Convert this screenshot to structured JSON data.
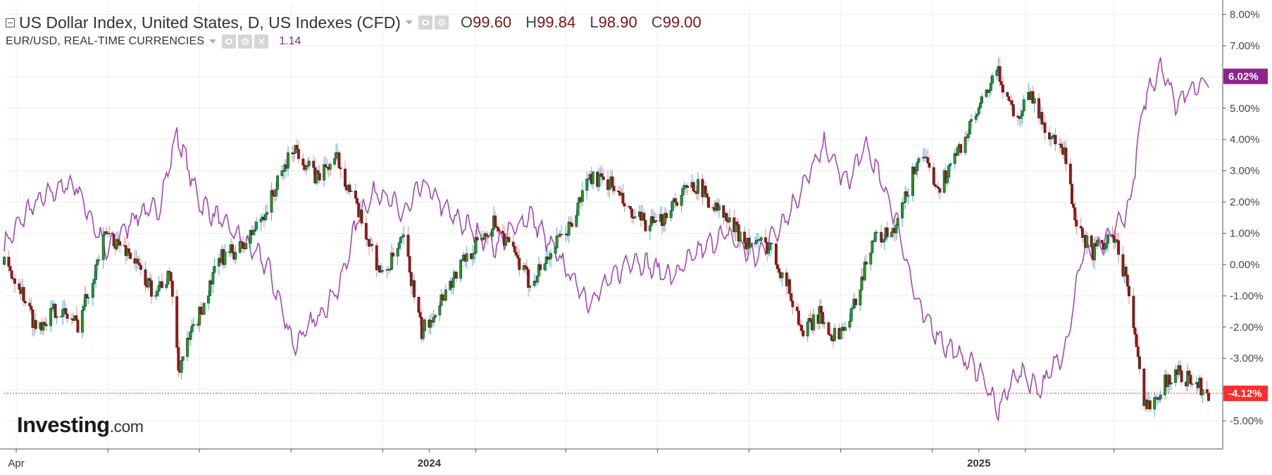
{
  "legend": {
    "title": "US Dollar Index, United States, D, US Indexes (CFD)",
    "ohlc": [
      {
        "key": "O",
        "value": "99.60"
      },
      {
        "key": "H",
        "value": "99.84"
      },
      {
        "key": "L",
        "value": "98.90"
      },
      {
        "key": "C",
        "value": "99.00"
      }
    ],
    "compare_title": "EUR/USD, REAL-TIME CURRENCIES",
    "compare_value": "1.14"
  },
  "logo": {
    "brand": "Investing",
    "suffix": ".com"
  },
  "colors": {
    "up": "#1d9a2a",
    "down": "#a11313",
    "compare_line": "#a14ab0",
    "last_price_line": "#ff2d2d",
    "compare_badge": "#8e238e",
    "grid": "#eeeeee"
  },
  "chart_data": {
    "type": "candlestick",
    "y_axis": {
      "min": -5.9,
      "max": 8.35,
      "ticks": [
        8,
        7,
        6,
        5,
        4,
        3,
        2,
        1,
        0,
        -1,
        -2,
        -3,
        -4,
        -5
      ],
      "tick_labels": [
        "8.00%",
        "7.00%",
        "6.00%",
        "5.00%",
        "4.00%",
        "3.00%",
        "2.00%",
        "1.00%",
        "0.00%",
        "-1.00%",
        "-2.00%",
        "-3.00%",
        "-4.00%",
        "-5.00%"
      ],
      "position": "right"
    },
    "x_axis": {
      "start": "2023-03-24",
      "end": "2025-06-03",
      "labels": [
        {
          "date": "2023-04-01",
          "text": "Apr",
          "bold": false
        },
        {
          "date": "2024-01-01",
          "text": "2024",
          "bold": true
        },
        {
          "date": "2025-01-01",
          "text": "2025",
          "bold": true
        }
      ],
      "minor_ticks": [
        "2023-04-01",
        "2023-06-01",
        "2023-08-01",
        "2023-10-01",
        "2023-12-01",
        "2024-02-01",
        "2024-04-01",
        "2024-06-01",
        "2024-08-01",
        "2024-10-01",
        "2024-12-01",
        "2025-02-01",
        "2025-04-01"
      ]
    },
    "grid": true,
    "series": [
      {
        "name": "US Dollar Index",
        "kind": "candlestick",
        "last_value": -4.12,
        "last_label": "-4.12%",
        "anchors": [
          [
            "2023-03-24",
            0.0
          ],
          [
            "2023-04-03",
            -0.6
          ],
          [
            "2023-04-14",
            -2.0
          ],
          [
            "2023-04-28",
            -1.4
          ],
          [
            "2023-05-12",
            -1.9
          ],
          [
            "2023-05-31",
            1.0
          ],
          [
            "2023-06-15",
            0.4
          ],
          [
            "2023-06-30",
            -0.8
          ],
          [
            "2023-07-13",
            -0.4
          ],
          [
            "2023-07-18",
            -3.3
          ],
          [
            "2023-08-01",
            -1.6
          ],
          [
            "2023-08-15",
            0.2
          ],
          [
            "2023-08-31",
            0.6
          ],
          [
            "2023-09-15",
            1.8
          ],
          [
            "2023-10-03",
            3.8
          ],
          [
            "2023-10-17",
            2.8
          ],
          [
            "2023-11-01",
            3.4
          ],
          [
            "2023-11-15",
            1.6
          ],
          [
            "2023-12-01",
            -0.4
          ],
          [
            "2023-12-15",
            0.8
          ],
          [
            "2023-12-27",
            -2.2
          ],
          [
            "2024-01-10",
            -1.0
          ],
          [
            "2024-01-25",
            0.2
          ],
          [
            "2024-02-14",
            1.4
          ],
          [
            "2024-03-08",
            -0.6
          ],
          [
            "2024-03-25",
            0.6
          ],
          [
            "2024-04-05",
            1.3
          ],
          [
            "2024-04-16",
            2.8
          ],
          [
            "2024-05-01",
            2.6
          ],
          [
            "2024-05-15",
            1.5
          ],
          [
            "2024-06-01",
            1.2
          ],
          [
            "2024-06-11",
            2.0
          ],
          [
            "2024-06-26",
            2.6
          ],
          [
            "2024-07-12",
            1.7
          ],
          [
            "2024-07-31",
            0.7
          ],
          [
            "2024-08-15",
            0.6
          ],
          [
            "2024-08-27",
            -0.7
          ],
          [
            "2024-09-06",
            -2.2
          ],
          [
            "2024-09-17",
            -1.6
          ],
          [
            "2024-09-27",
            -2.3
          ],
          [
            "2024-10-07",
            -1.8
          ],
          [
            "2024-10-22",
            0.8
          ],
          [
            "2024-11-06",
            1.0
          ],
          [
            "2024-11-22",
            3.5
          ],
          [
            "2024-12-06",
            2.5
          ],
          [
            "2024-12-20",
            3.8
          ],
          [
            "2025-01-02",
            5.0
          ],
          [
            "2025-01-13",
            6.2
          ],
          [
            "2025-01-27",
            4.6
          ],
          [
            "2025-02-03",
            5.6
          ],
          [
            "2025-02-14",
            4.4
          ],
          [
            "2025-02-28",
            3.4
          ],
          [
            "2025-03-06",
            1.2
          ],
          [
            "2025-03-18",
            0.4
          ],
          [
            "2025-04-01",
            0.9
          ],
          [
            "2025-04-10",
            -0.6
          ],
          [
            "2025-04-21",
            -4.6
          ],
          [
            "2025-05-12",
            -3.4
          ],
          [
            "2025-05-28",
            -3.9
          ],
          [
            "2025-06-03",
            -4.12
          ]
        ]
      },
      {
        "name": "EUR/USD",
        "kind": "line",
        "last_value": 6.02,
        "last_label": "6.02%",
        "anchors": [
          [
            "2023-03-24",
            0.6
          ],
          [
            "2023-04-10",
            1.8
          ],
          [
            "2023-04-27",
            2.4
          ],
          [
            "2023-05-10",
            2.6
          ],
          [
            "2023-05-31",
            0.4
          ],
          [
            "2023-06-20",
            1.6
          ],
          [
            "2023-07-05",
            1.8
          ],
          [
            "2023-07-17",
            4.2
          ],
          [
            "2023-08-01",
            2.0
          ],
          [
            "2023-08-20",
            1.2
          ],
          [
            "2023-09-15",
            0.0
          ],
          [
            "2023-10-03",
            -2.6
          ],
          [
            "2023-10-20",
            -1.6
          ],
          [
            "2023-11-03",
            -0.6
          ],
          [
            "2023-11-15",
            1.6
          ],
          [
            "2023-11-28",
            2.4
          ],
          [
            "2023-12-15",
            1.6
          ],
          [
            "2023-12-28",
            2.6
          ],
          [
            "2024-01-15",
            1.6
          ],
          [
            "2024-02-14",
            0.6
          ],
          [
            "2024-03-08",
            1.6
          ],
          [
            "2024-04-16",
            -1.2
          ],
          [
            "2024-05-15",
            0.2
          ],
          [
            "2024-06-11",
            -0.4
          ],
          [
            "2024-06-28",
            0.4
          ],
          [
            "2024-07-17",
            1.0
          ],
          [
            "2024-08-05",
            0.2
          ],
          [
            "2024-08-27",
            1.6
          ],
          [
            "2024-09-20",
            3.8
          ],
          [
            "2024-10-05",
            2.6
          ],
          [
            "2024-10-18",
            3.8
          ],
          [
            "2024-11-06",
            1.6
          ],
          [
            "2024-11-22",
            -1.4
          ],
          [
            "2024-12-10",
            -2.6
          ],
          [
            "2025-01-02",
            -3.4
          ],
          [
            "2025-01-13",
            -4.7
          ],
          [
            "2025-01-27",
            -3.4
          ],
          [
            "2025-02-11",
            -4.0
          ],
          [
            "2025-02-28",
            -2.6
          ],
          [
            "2025-03-11",
            0.4
          ],
          [
            "2025-03-25",
            0.6
          ],
          [
            "2025-04-11",
            1.8
          ],
          [
            "2025-04-21",
            5.2
          ],
          [
            "2025-05-02",
            6.4
          ],
          [
            "2025-05-12",
            5.2
          ],
          [
            "2025-06-03",
            6.02
          ]
        ]
      }
    ]
  }
}
